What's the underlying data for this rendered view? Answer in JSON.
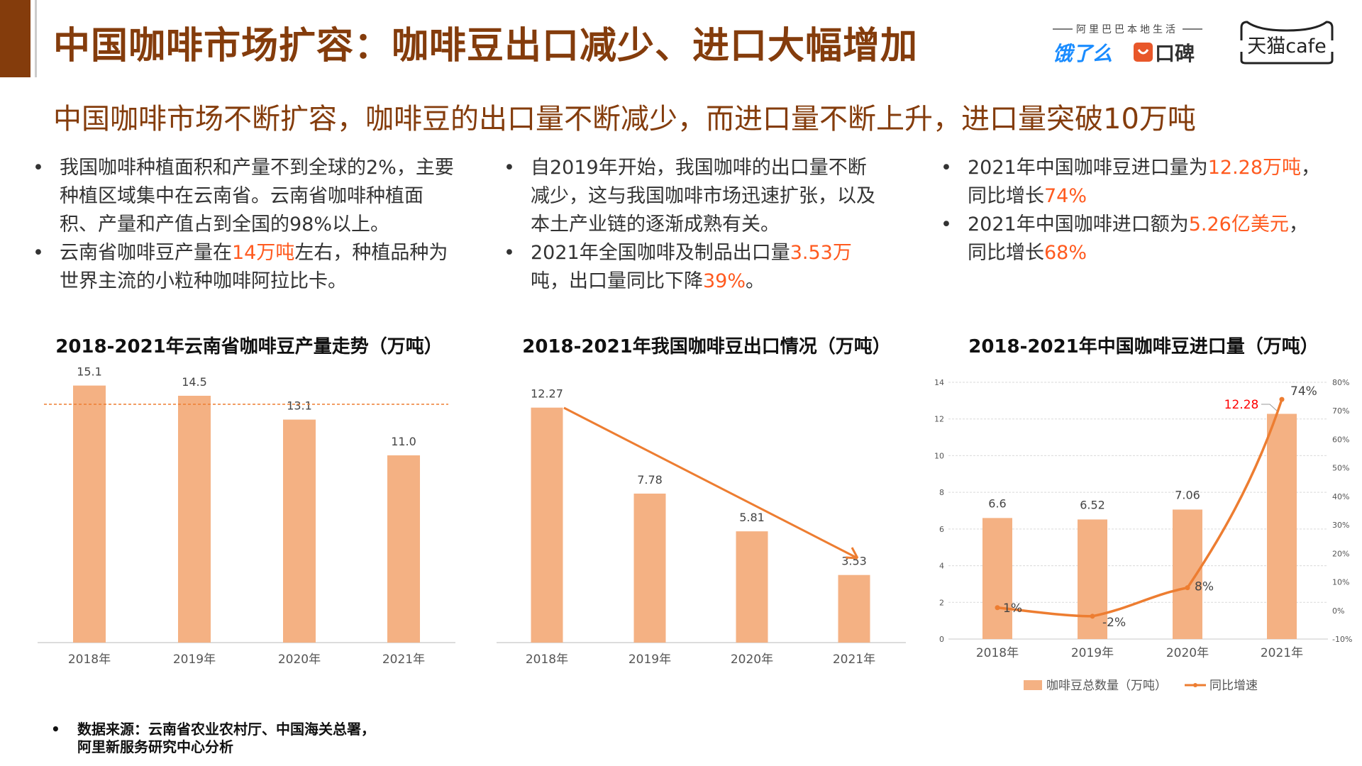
{
  "header": {
    "title": "中国咖啡市场扩容：咖啡豆出口减少、进口大幅增加",
    "subtitle": "中国咖啡市场不断扩容，咖啡豆的出口量不断减少，而进口量不断上升，进口量突破10万吨",
    "logos": {
      "alibaba_local": "阿里巴巴本地生活",
      "eleme": "饿了么",
      "koubei": "口碑",
      "tmall_cafe": "天猫cafe"
    }
  },
  "columns": [
    {
      "bullets": [
        [
          {
            "t": "我国咖啡种植面积和产量不到全球的2%，主要种植区域集中在云南省。云南省咖啡种植面积、产量和产值占到全国的98%以上。"
          }
        ],
        [
          {
            "t": "云南省咖啡豆产量在"
          },
          {
            "t": "14万吨",
            "hl": true
          },
          {
            "t": "左右，种植品种为世界主流的小粒种咖啡阿拉比卡。"
          }
        ]
      ]
    },
    {
      "bullets": [
        [
          {
            "t": "自2019年开始，我国咖啡的出口量不断减少，这与我国咖啡市场迅速扩张，以及本土产业链的逐渐成熟有关。"
          }
        ],
        [
          {
            "t": "2021年全国咖啡及制品出口量"
          },
          {
            "t": "3.53万",
            "hl": true
          },
          {
            "t": "吨，出口量同比下降"
          },
          {
            "t": "39%",
            "hl": true
          },
          {
            "t": "。"
          }
        ]
      ]
    },
    {
      "bullets": [
        [
          {
            "t": "2021年中国咖啡豆进口量为"
          },
          {
            "t": "12.28万吨",
            "hl": true
          },
          {
            "t": "，同比增长"
          },
          {
            "t": "74%",
            "hl": true
          }
        ],
        [
          {
            "t": "2021年中国咖啡进口额为"
          },
          {
            "t": "5.26亿美元",
            "hl": true
          },
          {
            "t": "，同比增长"
          },
          {
            "t": "68%",
            "hl": true
          }
        ]
      ]
    }
  ],
  "colors": {
    "bar": "#F4B183",
    "line": "#ED7D31",
    "highlight": "#FF5A1F",
    "title": "#843C0C",
    "label_red": "#FF0000"
  },
  "chart_data": [
    {
      "type": "bar",
      "title": "2018-2021年云南省咖啡豆产量走势（万吨）",
      "categories": [
        "2018年",
        "2019年",
        "2020年",
        "2021年"
      ],
      "values": [
        15.1,
        14.5,
        13.1,
        11.0
      ],
      "labels": [
        "15.1",
        "14.5",
        "13.1",
        "11.0"
      ],
      "reference_line": 14,
      "grid": false
    },
    {
      "type": "bar",
      "title": "2018-2021年我国咖啡豆出口情况（万吨）",
      "categories": [
        "2018年",
        "2019年",
        "2020年",
        "2021年"
      ],
      "values": [
        12.27,
        7.78,
        5.81,
        3.53
      ],
      "labels": [
        "12.27",
        "7.78",
        "5.81",
        "3.53"
      ],
      "trend_arrow": true,
      "grid": false
    },
    {
      "type": "bar+line",
      "title": "2018-2021年中国咖啡豆进口量（万吨）",
      "categories": [
        "2018年",
        "2019年",
        "2020年",
        "2021年"
      ],
      "series": [
        {
          "name": "咖啡豆总数量（万吨）",
          "type": "bar",
          "values": [
            6.6,
            6.52,
            7.06,
            12.28
          ],
          "labels": [
            "6.6",
            "6.52",
            "7.06",
            "12.28"
          ]
        },
        {
          "name": "同比增速",
          "type": "line",
          "axis": "right",
          "values": [
            1,
            -2,
            8,
            74
          ],
          "labels": [
            "1%",
            "-2%",
            "8%",
            "74%"
          ]
        }
      ],
      "ylim": [
        0,
        14
      ],
      "yticks": [
        "0",
        "2",
        "4",
        "6",
        "8",
        "10",
        "12",
        "14"
      ],
      "y2lim": [
        -10,
        80
      ],
      "y2ticks": [
        "-10%",
        "0%",
        "10%",
        "20%",
        "30%",
        "40%",
        "50%",
        "60%",
        "70%",
        "80%"
      ],
      "grid": true,
      "legend": "bottom"
    }
  ],
  "source": {
    "line1": "数据来源：云南省农业农村厅、中国海关总署，",
    "line2": "阿里新服务研究中心分析"
  }
}
